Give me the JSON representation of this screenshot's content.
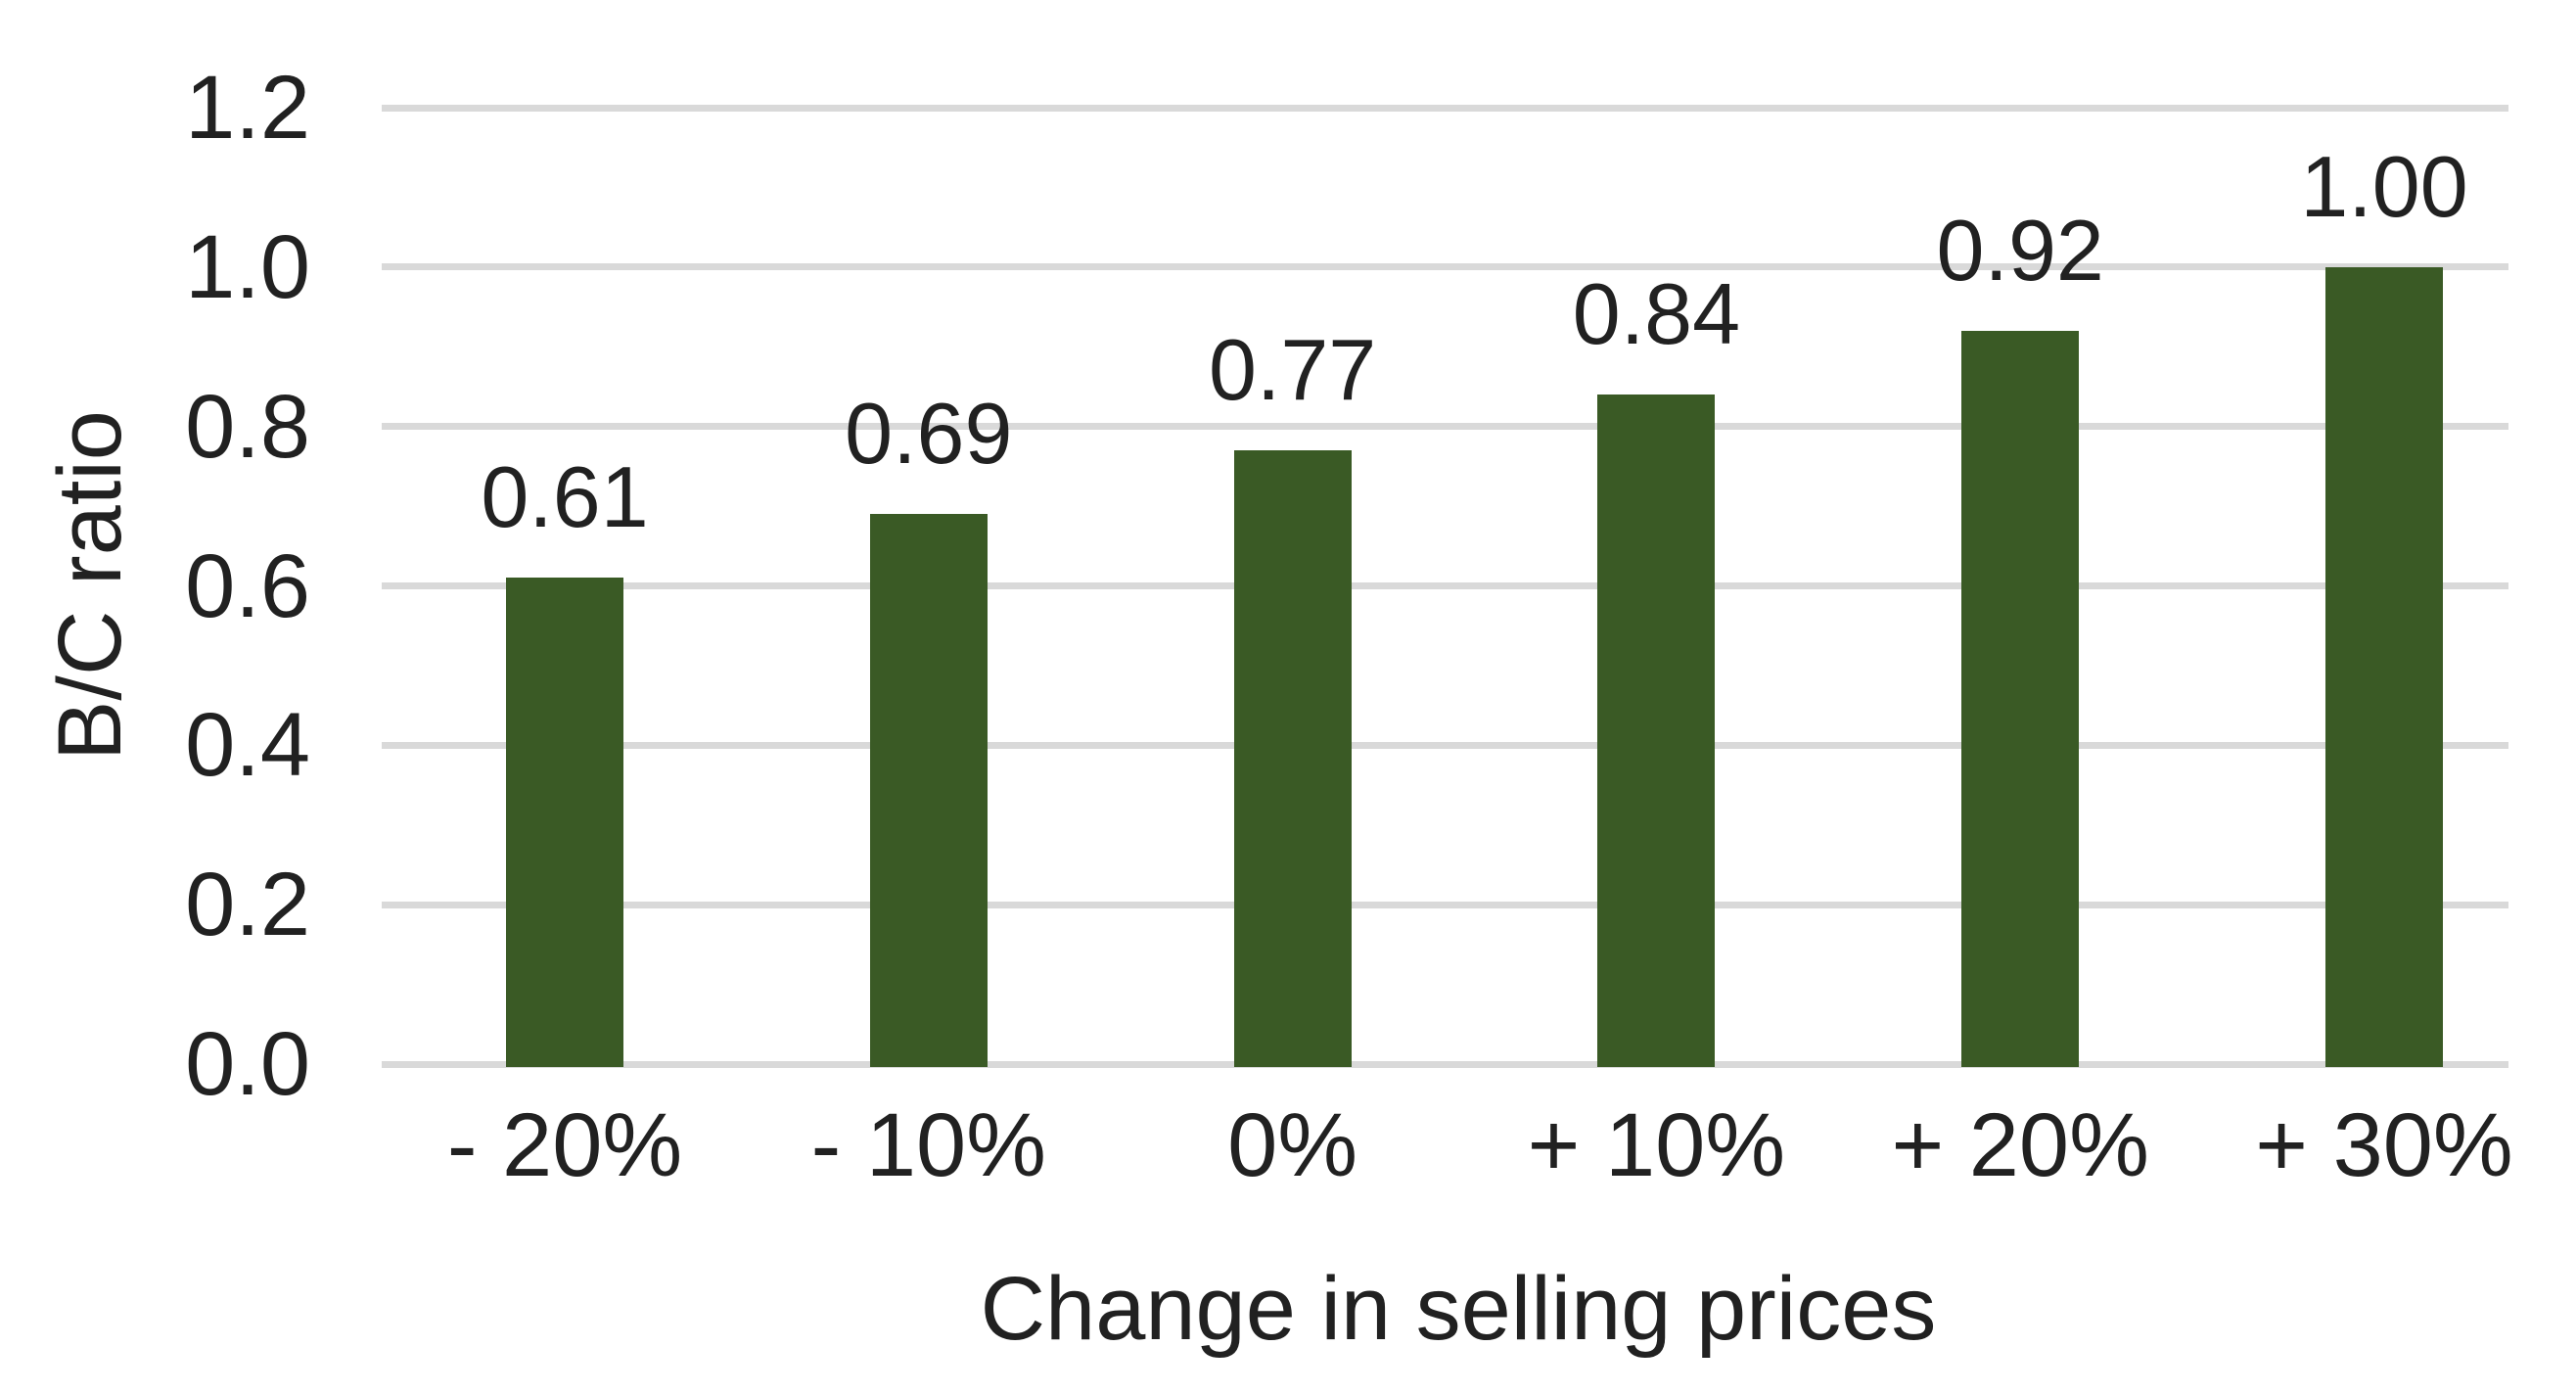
{
  "chart_data": {
    "type": "bar",
    "title": "",
    "categories": [
      "- 20%",
      "- 10%",
      "0%",
      "+ 10%",
      "+ 20%",
      "+ 30%"
    ],
    "values": [
      0.61,
      0.69,
      0.77,
      0.84,
      0.92,
      1.0
    ],
    "value_labels": [
      "0.61",
      "0.69",
      "0.77",
      "0.84",
      "0.92",
      "1.00"
    ],
    "xlabel": "Change in selling prices",
    "ylabel": "B/C ratio",
    "ylim": [
      0.0,
      1.2
    ],
    "ytick_labels": [
      "0.0",
      "0.2",
      "0.4",
      "0.6",
      "0.8",
      "1.0",
      "1.2"
    ],
    "ytick_values": [
      0.0,
      0.2,
      0.4,
      0.6,
      0.8,
      1.0,
      1.2
    ],
    "grid": "horizontal",
    "legend": "none",
    "bar_color": "#3a5a25",
    "gridline_color": "#d9d9d9",
    "text_color": "#212121"
  }
}
